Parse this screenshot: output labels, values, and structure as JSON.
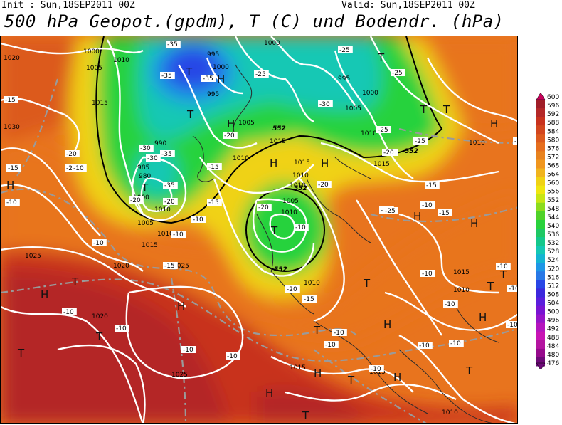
{
  "header": {
    "init": "Init : Sun,18SEP2011 00Z",
    "valid": "Valid: Sun,18SEP2011 00Z",
    "title": "500 hPa Geopot.(gpdm), T (C) und Bodendr. (hPa)"
  },
  "colors": {
    "warm_red": "#c8321e",
    "orange": "#e8741e",
    "yellow": "#f0e010",
    "green": "#28d23c",
    "cyan": "#14c8b4",
    "blue": "#2846e6",
    "isobar": "#ffffff",
    "isotherm": "#a0a0a0"
  },
  "colorbar": {
    "labels": [
      "600",
      "596",
      "592",
      "588",
      "584",
      "580",
      "576",
      "572",
      "568",
      "564",
      "560",
      "556",
      "552",
      "548",
      "544",
      "540",
      "536",
      "532",
      "528",
      "524",
      "520",
      "516",
      "512",
      "508",
      "504",
      "500",
      "496",
      "492",
      "488",
      "484",
      "480",
      "476"
    ],
    "colors": [
      "#c8005a",
      "#a01e28",
      "#b42828",
      "#c8321e",
      "#d2461e",
      "#dc5a1e",
      "#e66e1e",
      "#e8821e",
      "#f0961e",
      "#f0b41e",
      "#f0d214",
      "#f0e610",
      "#c8e614",
      "#8cdc1e",
      "#50d228",
      "#28d23c",
      "#1ec864",
      "#14c88c",
      "#14c8b4",
      "#14b4d2",
      "#1e96e6",
      "#2878e6",
      "#2846e6",
      "#3c28dc",
      "#5a1edc",
      "#7814d2",
      "#9614c8",
      "#b414be",
      "#c814b4",
      "#b414a0",
      "#960a8c",
      "#6e0a78"
    ]
  },
  "pressure_labels": [
    "1020",
    "1000",
    "1010",
    "995",
    "1000",
    "1005",
    "1030",
    "1015",
    "1000",
    "995",
    "1025",
    "1005",
    "990",
    "985",
    "980",
    "1015",
    "1010",
    "1015",
    "1010",
    "1005",
    "1000",
    "1010",
    "1015",
    "1010",
    "1020",
    "1025",
    "1020",
    "1025",
    "1015",
    "1005",
    "1010",
    "995",
    "1000",
    "1005",
    "1010",
    "1015",
    "1010",
    "1015",
    "1010",
    "1010",
    "1010",
    "1015",
    "1010"
  ],
  "temp_labels": [
    "-35",
    "-35",
    "-35",
    "-25",
    "-25",
    "-25",
    "-30",
    "-35",
    "-35",
    "-30",
    "-30",
    "-25",
    "-25",
    "-25",
    "-15",
    "-20",
    "-20",
    "-15",
    "-20",
    "-20",
    "-20",
    "-15",
    "-15",
    "-20",
    "-20",
    "-10",
    "-10",
    "-10",
    "-15",
    "-20",
    "-10",
    "-10",
    "-10",
    "-10",
    "-10",
    "-10",
    "-10",
    "-10",
    "-10",
    "-15",
    "-15",
    "-10",
    "-10",
    "-10",
    "-10",
    "-15",
    "-10",
    "-10",
    "-10",
    "-10",
    "-10",
    "-20",
    "-25",
    "-15",
    "-15"
  ],
  "pressure_centers": [
    "H",
    "T",
    "T",
    "H",
    "T",
    "H",
    "H",
    "T",
    "T",
    "T",
    "H",
    "H",
    "T",
    "H",
    "H",
    "H",
    "T",
    "T",
    "T",
    "H",
    "T",
    "H",
    "T",
    "H",
    "T",
    "H",
    "T",
    "T",
    "T",
    "H",
    "H",
    "T"
  ],
  "geopotential_labels": [
    "552",
    "552",
    "552",
    "552"
  ]
}
